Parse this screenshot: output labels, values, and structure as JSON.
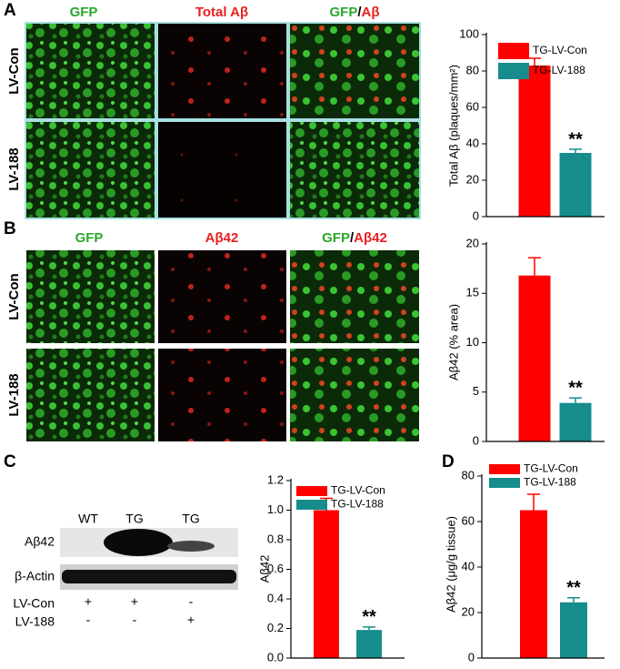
{
  "panel_labels": [
    "A",
    "B",
    "C",
    "D"
  ],
  "panel_a_images": {
    "columns": [
      [
        "GFP"
      ],
      [
        "Total Aβ"
      ],
      [
        "GFP",
        "/",
        "Aβ"
      ]
    ],
    "rows": [
      "LV-Con",
      "LV-188"
    ]
  },
  "panel_b_images": {
    "columns": [
      [
        "GFP"
      ],
      [
        "Aβ42"
      ],
      [
        "GFP",
        "/",
        "Aβ42"
      ]
    ],
    "rows": [
      "LV-Con",
      "LV-188"
    ]
  },
  "blot": {
    "lanes": [
      "WT",
      "TG",
      "TG"
    ],
    "bands": [
      "Aβ42",
      "β-Actin"
    ],
    "treatments": [
      {
        "name": "LV-Con",
        "marks": [
          "+",
          "+",
          "-"
        ]
      },
      {
        "name": "LV-188",
        "marks": [
          "-",
          "-",
          "+"
        ]
      }
    ]
  },
  "chart_data": [
    {
      "type": "bar",
      "y_label": "Total Aβ (plaques/mm²)",
      "ylim": [
        0,
        100
      ],
      "yticks": [
        0,
        20,
        40,
        60,
        80,
        100
      ],
      "legend": "upper right",
      "series": [
        {
          "name": "TG-LV-Con",
          "color": "#ff0000",
          "values": [
            83
          ],
          "errors": [
            4
          ]
        },
        {
          "name": "TG-LV-188",
          "color": "#168c8c",
          "values": [
            35
          ],
          "errors": [
            2
          ],
          "annotation": "**"
        }
      ]
    },
    {
      "type": "bar",
      "y_label": "Aβ42 (% area)",
      "ylim": [
        0,
        20
      ],
      "yticks": [
        0,
        5,
        10,
        15,
        20
      ],
      "series": [
        {
          "color": "#ff0000",
          "values": [
            16.8
          ],
          "errors": [
            1.8
          ]
        },
        {
          "color": "#168c8c",
          "values": [
            3.9
          ],
          "errors": [
            0.5
          ],
          "annotation": "**"
        }
      ]
    },
    {
      "type": "bar",
      "y_label": "Aβ42",
      "ylim": [
        0,
        1.2
      ],
      "yticks": [
        {
          "value": 0,
          "label": "0.0"
        },
        0.2,
        0.4,
        0.6,
        0.8,
        {
          "value": 1,
          "label": "1.0"
        },
        1.2
      ],
      "legend": "upper right",
      "series": [
        {
          "name": "TG-LV-Con",
          "color": "#ff0000",
          "values": [
            1.0
          ],
          "errors": [
            0.08
          ]
        },
        {
          "name": "TG-LV-188",
          "color": "#168c8c",
          "values": [
            0.19
          ],
          "errors": [
            0.02
          ],
          "annotation": "**"
        }
      ]
    },
    {
      "type": "bar",
      "y_label": "Aβ42 (μg/g tissue)",
      "ylim": [
        0,
        80
      ],
      "yticks": [
        0,
        20,
        40,
        60,
        80
      ],
      "legend": "upper left",
      "series": [
        {
          "name": "TG-LV-Con",
          "color": "#ff0000",
          "values": [
            65
          ],
          "errors": [
            7
          ]
        },
        {
          "name": "TG-LV-188",
          "color": "#168c8c",
          "values": [
            24.5
          ],
          "errors": [
            2
          ],
          "annotation": "**"
        }
      ]
    }
  ]
}
